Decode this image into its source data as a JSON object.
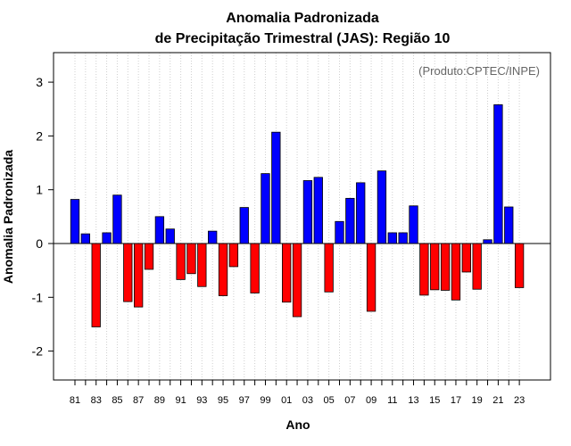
{
  "chart_data": {
    "type": "bar",
    "title": [
      "Anomalia Padronizada",
      "de Precipitação Trimestral (JAS): Região 10"
    ],
    "xlabel": "Ano",
    "ylabel": "Anomalia Padronizada",
    "source_note": "(Produto:CPTEC/INPE)",
    "ylim": [
      -2.6,
      3.6
    ],
    "yticks": [
      -2,
      -1,
      0,
      1,
      2,
      3
    ],
    "grid": "vertical dotted",
    "positive_color": "#0000ff",
    "negative_color": "#ff0000",
    "years": [
      "81",
      "82",
      "83",
      "84",
      "85",
      "86",
      "87",
      "88",
      "89",
      "90",
      "91",
      "92",
      "93",
      "94",
      "95",
      "96",
      "97",
      "98",
      "99",
      "00",
      "01",
      "02",
      "03",
      "04",
      "05",
      "06",
      "07",
      "08",
      "09",
      "10",
      "11",
      "12",
      "13",
      "14",
      "15",
      "16",
      "17",
      "18",
      "19",
      "20",
      "21",
      "22",
      "23"
    ],
    "xtick_labels": [
      "81",
      "83",
      "85",
      "87",
      "89",
      "91",
      "93",
      "95",
      "97",
      "99",
      "01",
      "03",
      "05",
      "07",
      "09",
      "11",
      "13",
      "15",
      "17",
      "19",
      "21",
      "23"
    ],
    "values": [
      0.82,
      0.18,
      -1.55,
      0.2,
      0.9,
      -1.08,
      -1.18,
      -0.48,
      0.5,
      0.27,
      -0.67,
      -0.56,
      -0.8,
      0.23,
      -0.97,
      -0.43,
      0.67,
      -0.92,
      1.3,
      2.07,
      -1.09,
      -1.36,
      1.17,
      1.23,
      -0.9,
      0.41,
      0.84,
      1.13,
      -1.26,
      1.35,
      0.2,
      0.2,
      0.7,
      -0.96,
      -0.86,
      -0.87,
      -1.05,
      -0.53,
      -0.85,
      0.07,
      2.58,
      0.68,
      -0.82
    ]
  }
}
